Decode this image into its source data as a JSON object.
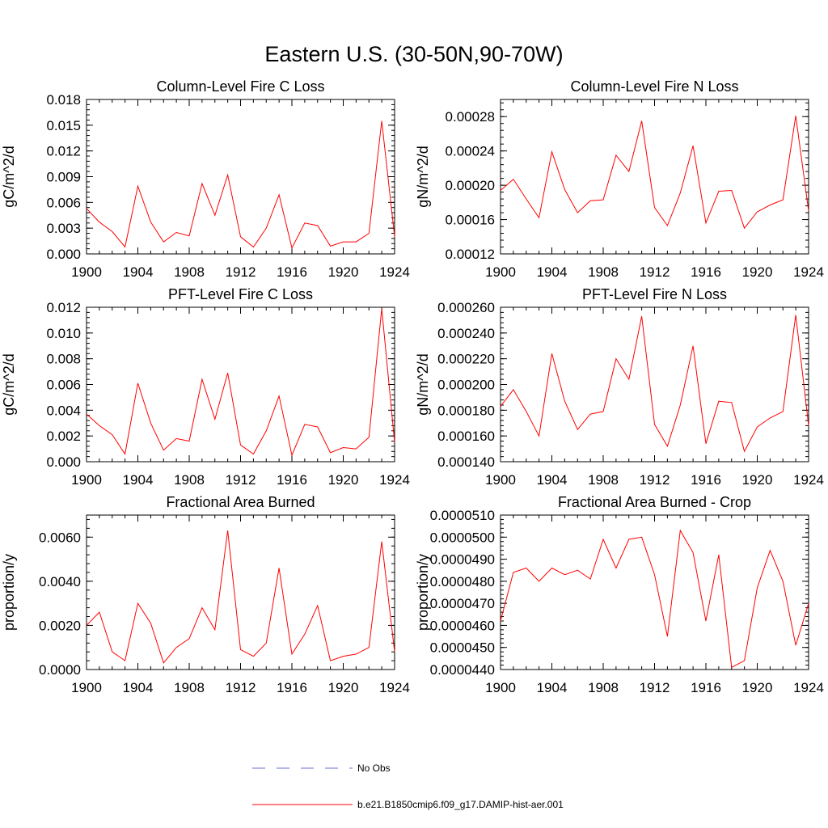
{
  "figure": {
    "title": "Eastern U.S. (30-50N,90-70W)",
    "legend": {
      "placement": "bottom-center",
      "entries": [
        {
          "label": "No Obs",
          "style": "dashed",
          "color": "#6a6fd0"
        },
        {
          "label": "b.e21.B1850cmip6.f09_g17.DAMIP-hist-aer.001",
          "style": "solid",
          "color": "#ff0000"
        }
      ]
    }
  },
  "chart_data": [
    {
      "type": "line",
      "title": "Column-Level Fire C Loss",
      "ylabel": "gC/m^2/d",
      "xlim": [
        1900,
        1924
      ],
      "ylim": [
        0,
        0.018
      ],
      "xticks": [
        "1900",
        "1904",
        "1908",
        "1912",
        "1916",
        "1920",
        "1924"
      ],
      "yticks": [
        "0.000",
        "0.003",
        "0.006",
        "0.009",
        "0.012",
        "0.015",
        "0.018"
      ],
      "x": [
        1900,
        1901,
        1902,
        1903,
        1904,
        1905,
        1906,
        1907,
        1908,
        1909,
        1910,
        1911,
        1912,
        1913,
        1914,
        1915,
        1916,
        1917,
        1918,
        1919,
        1920,
        1921,
        1922,
        1923,
        1924
      ],
      "series": [
        {
          "color": "#ff0000",
          "values": [
            0.0053,
            0.0037,
            0.0026,
            0.0008,
            0.0079,
            0.0037,
            0.0014,
            0.0025,
            0.0021,
            0.0082,
            0.0045,
            0.0092,
            0.002,
            0.0008,
            0.003,
            0.0069,
            0.0007,
            0.0036,
            0.0033,
            0.0009,
            0.0014,
            0.0014,
            0.0024,
            0.0155,
            0.002
          ]
        }
      ]
    },
    {
      "type": "line",
      "title": "Column-Level Fire N Loss",
      "ylabel": "gN/m^2/d",
      "xlim": [
        1900,
        1924
      ],
      "ylim": [
        0.00012,
        0.0003
      ],
      "xticks": [
        "1900",
        "1904",
        "1908",
        "1912",
        "1916",
        "1920",
        "1924"
      ],
      "yticks": [
        "0.00012",
        "0.00016",
        "0.00020",
        "0.00024",
        "0.00028"
      ],
      "x": [
        1900,
        1901,
        1902,
        1903,
        1904,
        1905,
        1906,
        1907,
        1908,
        1909,
        1910,
        1911,
        1912,
        1913,
        1914,
        1915,
        1916,
        1917,
        1918,
        1919,
        1920,
        1921,
        1922,
        1923,
        1924
      ],
      "series": [
        {
          "color": "#ff0000",
          "values": [
            0.000194,
            0.000207,
            0.000184,
            0.000162,
            0.000239,
            0.000195,
            0.000168,
            0.000182,
            0.000183,
            0.000235,
            0.000216,
            0.000275,
            0.000174,
            0.000153,
            0.000191,
            0.000246,
            0.000156,
            0.000193,
            0.000194,
            0.00015,
            0.000169,
            0.000177,
            0.000183,
            0.000281,
            0.00017
          ]
        }
      ]
    },
    {
      "type": "line",
      "title": "PFT-Level Fire C Loss",
      "ylabel": "gC/m^2/d",
      "xlim": [
        1900,
        1924
      ],
      "ylim": [
        0,
        0.012
      ],
      "xticks": [
        "1900",
        "1904",
        "1908",
        "1912",
        "1916",
        "1920",
        "1924"
      ],
      "yticks": [
        "0.000",
        "0.002",
        "0.004",
        "0.006",
        "0.008",
        "0.010",
        "0.012"
      ],
      "x": [
        1900,
        1901,
        1902,
        1903,
        1904,
        1905,
        1906,
        1907,
        1908,
        1909,
        1910,
        1911,
        1912,
        1913,
        1914,
        1915,
        1916,
        1917,
        1918,
        1919,
        1920,
        1921,
        1922,
        1923,
        1924
      ],
      "series": [
        {
          "color": "#ff0000",
          "values": [
            0.0037,
            0.0028,
            0.0021,
            0.0006,
            0.0061,
            0.003,
            0.0009,
            0.0018,
            0.0016,
            0.0064,
            0.0033,
            0.0069,
            0.0013,
            0.0006,
            0.0024,
            0.0051,
            0.0005,
            0.0029,
            0.0027,
            0.0007,
            0.0011,
            0.001,
            0.0019,
            0.0119,
            0.0015
          ]
        }
      ]
    },
    {
      "type": "line",
      "title": "PFT-Level Fire N Loss",
      "ylabel": "gN/m^2/d",
      "xlim": [
        1900,
        1924
      ],
      "ylim": [
        0.00014,
        0.00026
      ],
      "xticks": [
        "1900",
        "1904",
        "1908",
        "1912",
        "1916",
        "1920",
        "1924"
      ],
      "yticks": [
        "0.000140",
        "0.000160",
        "0.000180",
        "0.000200",
        "0.000220",
        "0.000240",
        "0.000260"
      ],
      "x": [
        1900,
        1901,
        1902,
        1903,
        1904,
        1905,
        1906,
        1907,
        1908,
        1909,
        1910,
        1911,
        1912,
        1913,
        1914,
        1915,
        1916,
        1917,
        1918,
        1919,
        1920,
        1921,
        1922,
        1923,
        1924
      ],
      "series": [
        {
          "color": "#ff0000",
          "values": [
            0.000183,
            0.000196,
            0.000179,
            0.00016,
            0.000224,
            0.000187,
            0.000165,
            0.000177,
            0.000179,
            0.00022,
            0.000204,
            0.000253,
            0.000169,
            0.000152,
            0.000184,
            0.00023,
            0.000154,
            0.000187,
            0.000186,
            0.000148,
            0.000167,
            0.000174,
            0.000179,
            0.000254,
            0.000168
          ]
        }
      ]
    },
    {
      "type": "line",
      "title": "Fractional Area Burned",
      "ylabel": "proportion/y",
      "xlim": [
        1900,
        1924
      ],
      "ylim": [
        0,
        0.007
      ],
      "xticks": [
        "1900",
        "1904",
        "1908",
        "1912",
        "1916",
        "1920",
        "1924"
      ],
      "yticks": [
        "0.0000",
        "0.0020",
        "0.0040",
        "0.0060"
      ],
      "x": [
        1900,
        1901,
        1902,
        1903,
        1904,
        1905,
        1906,
        1907,
        1908,
        1909,
        1910,
        1911,
        1912,
        1913,
        1914,
        1915,
        1916,
        1917,
        1918,
        1919,
        1920,
        1921,
        1922,
        1923,
        1924
      ],
      "series": [
        {
          "color": "#ff0000",
          "values": [
            0.002,
            0.0026,
            0.0008,
            0.0004,
            0.003,
            0.0021,
            0.0003,
            0.001,
            0.0014,
            0.0028,
            0.0018,
            0.0063,
            0.0009,
            0.0006,
            0.0012,
            0.0046,
            0.0007,
            0.0016,
            0.0029,
            0.0004,
            0.0006,
            0.0007,
            0.001,
            0.0058,
            0.0008
          ]
        }
      ]
    },
    {
      "type": "line",
      "title": "Fractional Area Burned - Crop",
      "ylabel": "proportion/y",
      "xlim": [
        1900,
        1924
      ],
      "ylim": [
        4.4e-05,
        5.1e-05
      ],
      "xticks": [
        "1900",
        "1904",
        "1908",
        "1912",
        "1916",
        "1920",
        "1924"
      ],
      "yticks": [
        "0.0000440",
        "0.0000450",
        "0.0000460",
        "0.0000470",
        "0.0000480",
        "0.0000490",
        "0.0000500",
        "0.0000510"
      ],
      "x": [
        1900,
        1901,
        1902,
        1903,
        1904,
        1905,
        1906,
        1907,
        1908,
        1909,
        1910,
        1911,
        1912,
        1913,
        1914,
        1915,
        1916,
        1917,
        1918,
        1919,
        1920,
        1921,
        1922,
        1923,
        1924
      ],
      "series": [
        {
          "color": "#ff0000",
          "values": [
            4.62e-05,
            4.84e-05,
            4.86e-05,
            4.8e-05,
            4.86e-05,
            4.83e-05,
            4.85e-05,
            4.81e-05,
            4.99e-05,
            4.86e-05,
            4.99e-05,
            5e-05,
            4.83e-05,
            4.55e-05,
            5.03e-05,
            4.93e-05,
            4.62e-05,
            4.92e-05,
            4.41e-05,
            4.44e-05,
            4.77e-05,
            4.94e-05,
            4.8e-05,
            4.51e-05,
            4.7e-05
          ]
        }
      ]
    }
  ]
}
